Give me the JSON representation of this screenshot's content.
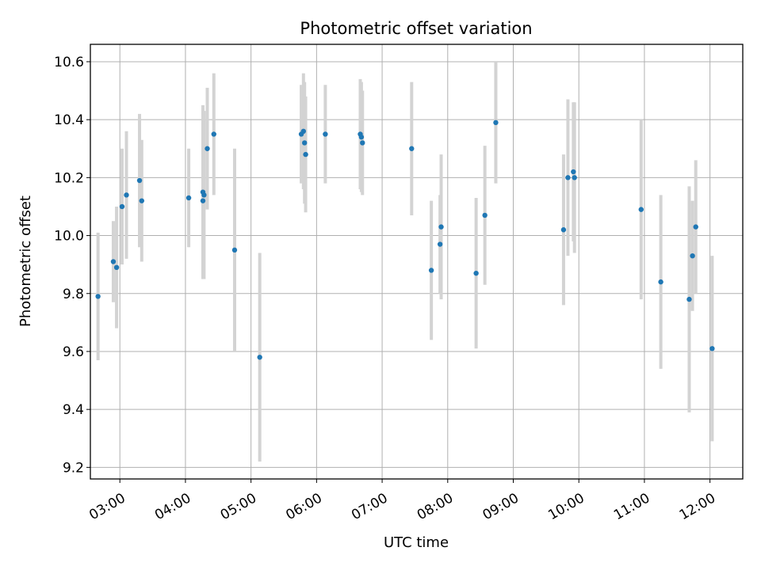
{
  "chart_data": {
    "type": "scatter",
    "title": "Photometric offset variation",
    "xlabel": "UTC time",
    "ylabel": "Photometric offset",
    "x_unit": "UTC hh:mm",
    "xlim": [
      "02:33",
      "12:30"
    ],
    "ylim": [
      9.16,
      10.66
    ],
    "x_ticks": [
      "03:00",
      "04:00",
      "05:00",
      "06:00",
      "07:00",
      "08:00",
      "09:00",
      "10:00",
      "11:00",
      "12:00"
    ],
    "y_ticks": [
      9.2,
      9.4,
      9.6,
      9.8,
      10.0,
      10.2,
      10.4,
      10.6
    ],
    "grid": true,
    "marker_color": "#1f77b4",
    "errorbar_color": "#d3d3d3",
    "points": [
      {
        "x": "02:40",
        "y": 9.79,
        "err": 0.22
      },
      {
        "x": "02:54",
        "y": 9.91,
        "err": 0.14
      },
      {
        "x": "02:57",
        "y": 9.89,
        "err": 0.21
      },
      {
        "x": "03:02",
        "y": 10.1,
        "err": 0.2
      },
      {
        "x": "03:06",
        "y": 10.14,
        "err": 0.22
      },
      {
        "x": "03:18",
        "y": 10.19,
        "err": 0.23
      },
      {
        "x": "03:20",
        "y": 10.12,
        "err": 0.21
      },
      {
        "x": "04:03",
        "y": 10.13,
        "err": 0.17
      },
      {
        "x": "04:16",
        "y": 10.12,
        "err": 0.17
      },
      {
        "x": "04:16",
        "y": 10.15,
        "err": 0.3
      },
      {
        "x": "04:17",
        "y": 10.14,
        "err": 0.29
      },
      {
        "x": "04:20",
        "y": 10.3,
        "err": 0.21
      },
      {
        "x": "04:26",
        "y": 10.35,
        "err": 0.21
      },
      {
        "x": "04:45",
        "y": 9.95,
        "err": 0.35
      },
      {
        "x": "05:08",
        "y": 9.58,
        "err": 0.36
      },
      {
        "x": "05:46",
        "y": 10.35,
        "err": 0.17
      },
      {
        "x": "05:48",
        "y": 10.36,
        "err": 0.2
      },
      {
        "x": "05:49",
        "y": 10.32,
        "err": 0.21
      },
      {
        "x": "05:50",
        "y": 10.28,
        "err": 0.2
      },
      {
        "x": "06:08",
        "y": 10.35,
        "err": 0.17
      },
      {
        "x": "06:40",
        "y": 10.35,
        "err": 0.19
      },
      {
        "x": "06:41",
        "y": 10.34,
        "err": 0.19
      },
      {
        "x": "06:42",
        "y": 10.32,
        "err": 0.18
      },
      {
        "x": "07:27",
        "y": 10.3,
        "err": 0.23
      },
      {
        "x": "07:45",
        "y": 9.88,
        "err": 0.24
      },
      {
        "x": "07:53",
        "y": 9.97,
        "err": 0.17
      },
      {
        "x": "07:54",
        "y": 10.03,
        "err": 0.25
      },
      {
        "x": "08:26",
        "y": 9.87,
        "err": 0.26
      },
      {
        "x": "08:34",
        "y": 10.07,
        "err": 0.24
      },
      {
        "x": "08:44",
        "y": 10.39,
        "err": 0.21
      },
      {
        "x": "09:46",
        "y": 10.02,
        "err": 0.26
      },
      {
        "x": "09:50",
        "y": 10.2,
        "err": 0.27
      },
      {
        "x": "09:55",
        "y": 10.22,
        "err": 0.24
      },
      {
        "x": "09:56",
        "y": 10.2,
        "err": 0.26
      },
      {
        "x": "10:57",
        "y": 10.09,
        "err": 0.31
      },
      {
        "x": "11:15",
        "y": 9.84,
        "err": 0.3
      },
      {
        "x": "11:41",
        "y": 9.78,
        "err": 0.39
      },
      {
        "x": "11:44",
        "y": 9.93,
        "err": 0.19
      },
      {
        "x": "11:47",
        "y": 10.03,
        "err": 0.23
      },
      {
        "x": "12:02",
        "y": 9.61,
        "err": 0.32
      }
    ]
  }
}
